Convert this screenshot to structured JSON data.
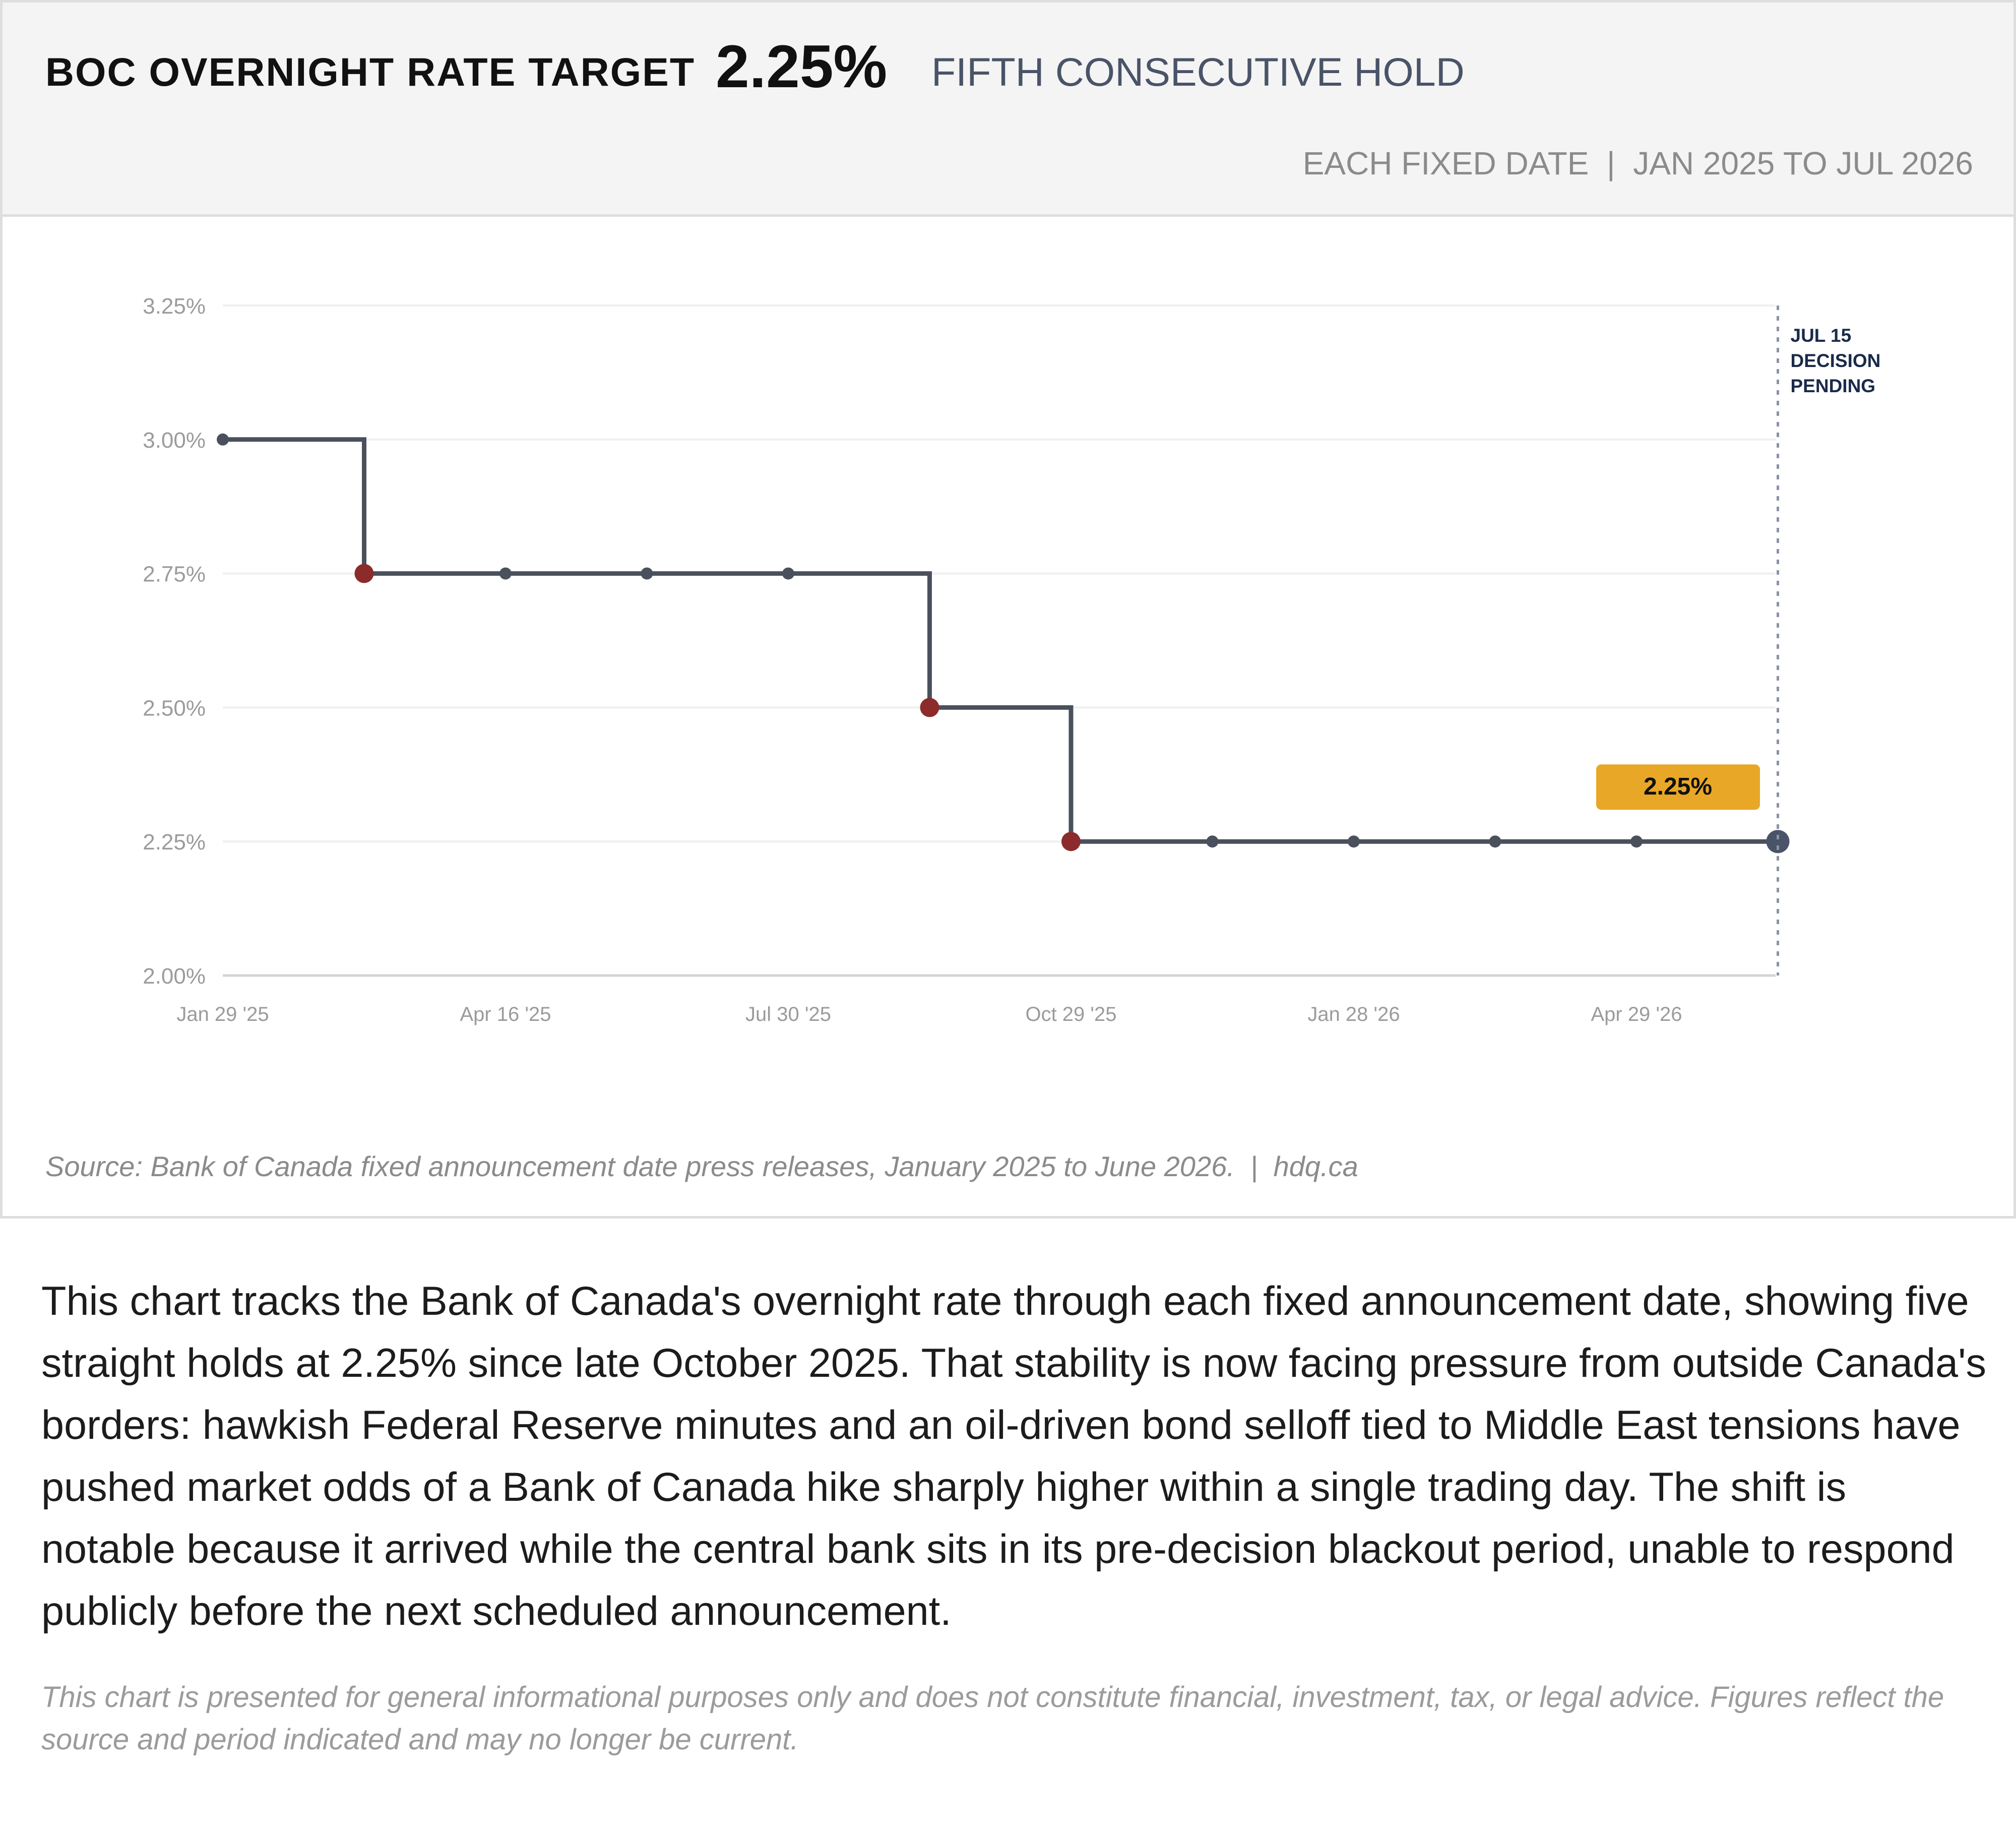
{
  "header": {
    "title": "BOC OVERNIGHT RATE TARGET",
    "value": "2.25%",
    "subtitle": "FIFTH CONSECUTIVE HOLD",
    "meta": "EACH FIXED DATE  |  JAN 2025 TO JUL 2026"
  },
  "chart_data": {
    "type": "line",
    "step": "after",
    "title": "BOC OVERNIGHT RATE TARGET",
    "xlabel": "",
    "ylabel": "",
    "ylim": [
      2.0,
      3.25
    ],
    "yticks": [
      2.0,
      2.25,
      2.5,
      2.75,
      3.0,
      3.25
    ],
    "ytick_labels": [
      "2.00%",
      "2.25%",
      "2.50%",
      "2.75%",
      "3.00%",
      "3.25%"
    ],
    "xtick_labels": [
      "Jan 29 '25",
      "Apr 16 '25",
      "Jul 30 '25",
      "Oct 29 '25",
      "Jan 28 '26",
      "Apr 29 '26"
    ],
    "grid": true,
    "points": [
      {
        "x": "Jan 29 '25",
        "y": 3.0,
        "kind": "start"
      },
      {
        "x": "Mar 2025",
        "y": 2.75,
        "kind": "cut"
      },
      {
        "x": "Apr 16 '25",
        "y": 2.75,
        "kind": "hold"
      },
      {
        "x": "Jun 2025",
        "y": 2.75,
        "kind": "hold"
      },
      {
        "x": "Jul 30 '25",
        "y": 2.75,
        "kind": "hold"
      },
      {
        "x": "Sep 2025",
        "y": 2.5,
        "kind": "cut"
      },
      {
        "x": "Oct 29 '25",
        "y": 2.25,
        "kind": "cut"
      },
      {
        "x": "Dec 2025",
        "y": 2.25,
        "kind": "hold"
      },
      {
        "x": "Jan 28 '26",
        "y": 2.25,
        "kind": "hold"
      },
      {
        "x": "Mar 2026",
        "y": 2.25,
        "kind": "hold"
      },
      {
        "x": "Apr 29 '26",
        "y": 2.25,
        "kind": "hold"
      },
      {
        "x": "Jun 2026",
        "y": 2.25,
        "kind": "current"
      }
    ],
    "current_label": "2.25%",
    "annotation_lines": [
      "JUL 15",
      "DECISION",
      "PENDING"
    ],
    "colors": {
      "line": "#4a505c",
      "cut": "#8b2b2b",
      "hold": "#4a505c",
      "current": "#4a5468",
      "highlight": "#e8a726",
      "annotation": "#1a2a4a",
      "grid": "#efefef",
      "tick": "#9b9b9b"
    }
  },
  "source": "Source: Bank of Canada fixed announcement date press releases, January 2025 to June 2026.  |  hdq.ca",
  "description": "This chart tracks the Bank of Canada's overnight rate through each fixed announcement date, showing five straight holds at 2.25% since late October 2025. That stability is now facing pressure from outside Canada's borders: hawkish Federal Reserve minutes and an oil-driven bond selloff tied to Middle East tensions have pushed market odds of a Bank of Canada hike sharply higher within a single trading day. The shift is notable because it arrived while the central bank sits in its pre-decision blackout period, unable to respond publicly before the next scheduled announcement.",
  "disclaimer": "This chart is presented for general informational purposes only and does not constitute financial, investment, tax, or legal advice. Figures reflect the source and period indicated and may no longer be current."
}
